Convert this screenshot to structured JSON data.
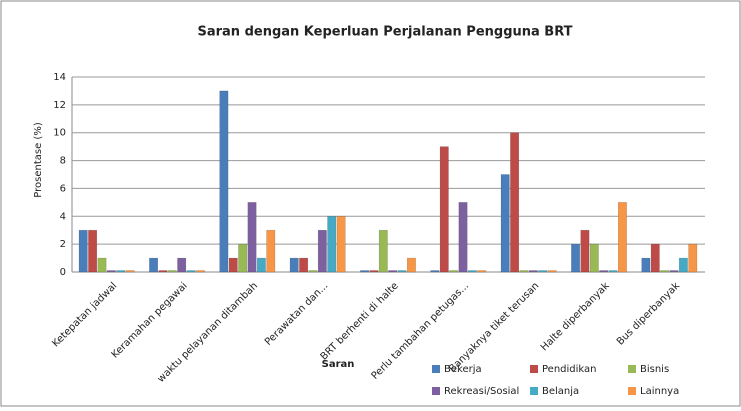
{
  "chart_data": {
    "type": "bar",
    "title": "Saran dengan Keperluan Perjalanan Pengguna BRT",
    "x_label": "Saran",
    "y_label": "Prosentase (%)",
    "categories": [
      "Ketepatan jadwal",
      "Keramahan pegawai",
      "waktu pelayanan ditambah",
      "Perawatan dan...",
      "BRT berhenti di halte",
      "Perlu tambahan petugas...",
      "Banyaknya tiket terusan",
      "Halte diperbanyak",
      "Bus diperbanyak"
    ],
    "series": [
      {
        "name": "Bekerja",
        "color": "#4a7ebb",
        "values": [
          3,
          1,
          13,
          1,
          0,
          0,
          7,
          2,
          1
        ]
      },
      {
        "name": "Pendidikan",
        "color": "#be4b48",
        "values": [
          3,
          0,
          1,
          1,
          0,
          9,
          10,
          3,
          2
        ]
      },
      {
        "name": "Bisnis",
        "color": "#98b954",
        "values": [
          1,
          0,
          2,
          0,
          3,
          0,
          0,
          2,
          0
        ]
      },
      {
        "name": "Rekreasi/Sosial",
        "color": "#7d60a0",
        "values": [
          0,
          1,
          5,
          3,
          0,
          5,
          0,
          0,
          0
        ]
      },
      {
        "name": "Belanja",
        "color": "#46aac5",
        "values": [
          0,
          0,
          1,
          4,
          0,
          0,
          0,
          0,
          1
        ]
      },
      {
        "name": "Lainnya",
        "color": "#f79646",
        "values": [
          0,
          0,
          3,
          4,
          1,
          0,
          0,
          5,
          2
        ]
      }
    ],
    "ylim": [
      0,
      14
    ],
    "yticks": [
      0,
      2,
      4,
      6,
      8,
      10,
      12,
      14
    ],
    "grid": true
  }
}
